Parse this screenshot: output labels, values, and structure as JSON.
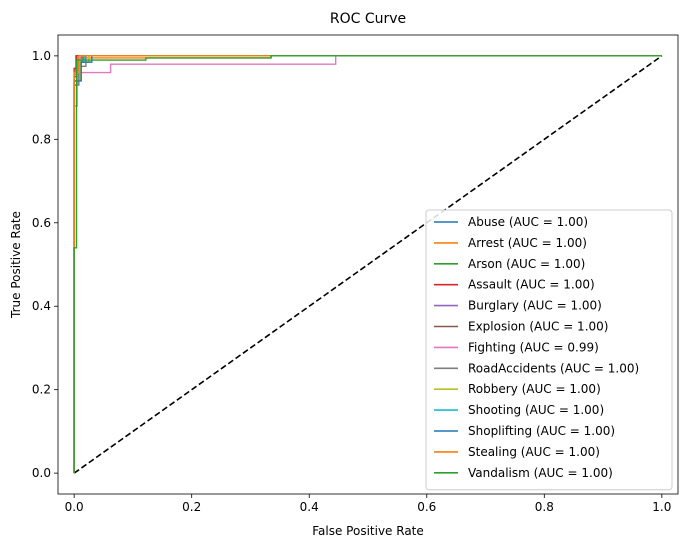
{
  "chart_data": {
    "type": "line",
    "title": "ROC Curve",
    "xlabel": "False Positive Rate",
    "ylabel": "True Positive Rate",
    "xlim": [
      -0.0275,
      1.0275
    ],
    "ylim": [
      -0.05,
      1.05
    ],
    "xticks": [
      0.0,
      0.2,
      0.4,
      0.6,
      0.8,
      1.0
    ],
    "yticks": [
      0.0,
      0.2,
      0.4,
      0.6,
      0.8,
      1.0
    ],
    "xtick_labels": [
      "0.0",
      "0.2",
      "0.4",
      "0.6",
      "0.8",
      "1.0"
    ],
    "ytick_labels": [
      "0.0",
      "0.2",
      "0.4",
      "0.6",
      "0.8",
      "1.0"
    ],
    "grid": false,
    "legend_position": "lower-right",
    "series": [
      {
        "name": "Abuse (AUC = 1.00)",
        "color": "#1f77b4",
        "x": [
          0,
          0,
          0.004,
          0.004,
          1
        ],
        "y": [
          0,
          0.95,
          0.95,
          1.0,
          1.0
        ]
      },
      {
        "name": "Arrest (AUC = 1.00)",
        "color": "#ff7f0e",
        "x": [
          0,
          0,
          0.005,
          0.005,
          0.335,
          0.335,
          1
        ],
        "y": [
          0,
          0.94,
          0.94,
          0.995,
          0.995,
          1.0,
          1.0
        ]
      },
      {
        "name": "Arson (AUC = 1.00)",
        "color": "#2ca02c",
        "x": [
          0,
          0,
          0.003,
          0.003,
          1
        ],
        "y": [
          0,
          0.96,
          0.96,
          1.0,
          1.0
        ]
      },
      {
        "name": "Assault (AUC = 1.00)",
        "color": "#d62728",
        "x": [
          0,
          0,
          0.004,
          0.004,
          1
        ],
        "y": [
          0,
          0.97,
          0.97,
          1.0,
          1.0
        ]
      },
      {
        "name": "Burglary (AUC = 1.00)",
        "color": "#9467bd",
        "x": [
          0,
          0,
          0.006,
          0.006,
          0.012,
          0.012,
          1
        ],
        "y": [
          0,
          0.93,
          0.93,
          0.98,
          0.98,
          1.0,
          1.0
        ]
      },
      {
        "name": "Explosion (AUC = 1.00)",
        "color": "#8c564b",
        "x": [
          0,
          0,
          0.005,
          0.005,
          0.015,
          0.015,
          1
        ],
        "y": [
          0,
          0.95,
          0.95,
          0.985,
          0.985,
          1.0,
          1.0
        ]
      },
      {
        "name": "Fighting (AUC = 0.99)",
        "color": "#e377c2",
        "x": [
          0,
          0,
          0.005,
          0.005,
          0.062,
          0.062,
          0.445,
          0.445,
          1
        ],
        "y": [
          0,
          0.88,
          0.88,
          0.96,
          0.96,
          0.98,
          0.98,
          1.0,
          1.0
        ]
      },
      {
        "name": "RoadAccidents (AUC = 1.00)",
        "color": "#7f7f7f",
        "x": [
          0,
          0,
          0.008,
          0.008,
          0.02,
          0.02,
          1
        ],
        "y": [
          0,
          0.93,
          0.93,
          0.975,
          0.975,
          1.0,
          1.0
        ]
      },
      {
        "name": "Robbery (AUC = 1.00)",
        "color": "#bcbd22",
        "x": [
          0,
          0,
          0.01,
          0.01,
          0.025,
          0.025,
          1
        ],
        "y": [
          0,
          0.94,
          0.94,
          0.985,
          0.985,
          1.0,
          1.0
        ]
      },
      {
        "name": "Shooting (AUC = 1.00)",
        "color": "#17becf",
        "x": [
          0,
          0,
          0.006,
          0.006,
          0.018,
          0.018,
          1
        ],
        "y": [
          0,
          0.955,
          0.955,
          0.99,
          0.99,
          1.0,
          1.0
        ]
      },
      {
        "name": "Shoplifting (AUC = 1.00)",
        "color": "#1f77b4",
        "x": [
          0,
          0,
          0.012,
          0.012,
          0.03,
          0.03,
          1
        ],
        "y": [
          0,
          0.94,
          0.94,
          0.985,
          0.985,
          1.0,
          1.0
        ]
      },
      {
        "name": "Stealing (AUC = 1.00)",
        "color": "#ff7f0e",
        "x": [
          0,
          0,
          0.008,
          0.008,
          1
        ],
        "y": [
          0,
          0.96,
          0.96,
          1.0,
          1.0
        ]
      },
      {
        "name": "Vandalism (AUC = 1.00)",
        "color": "#2ca02c",
        "x": [
          0,
          0,
          0.004,
          0.004,
          0.122,
          0.122,
          0.335,
          0.335,
          1
        ],
        "y": [
          0,
          0.54,
          0.54,
          0.99,
          0.99,
          0.995,
          0.995,
          1.0,
          1.0
        ]
      }
    ],
    "reference_line": {
      "x": [
        0,
        1
      ],
      "y": [
        0,
        1
      ],
      "color": "#000000",
      "style": "dashed"
    }
  }
}
